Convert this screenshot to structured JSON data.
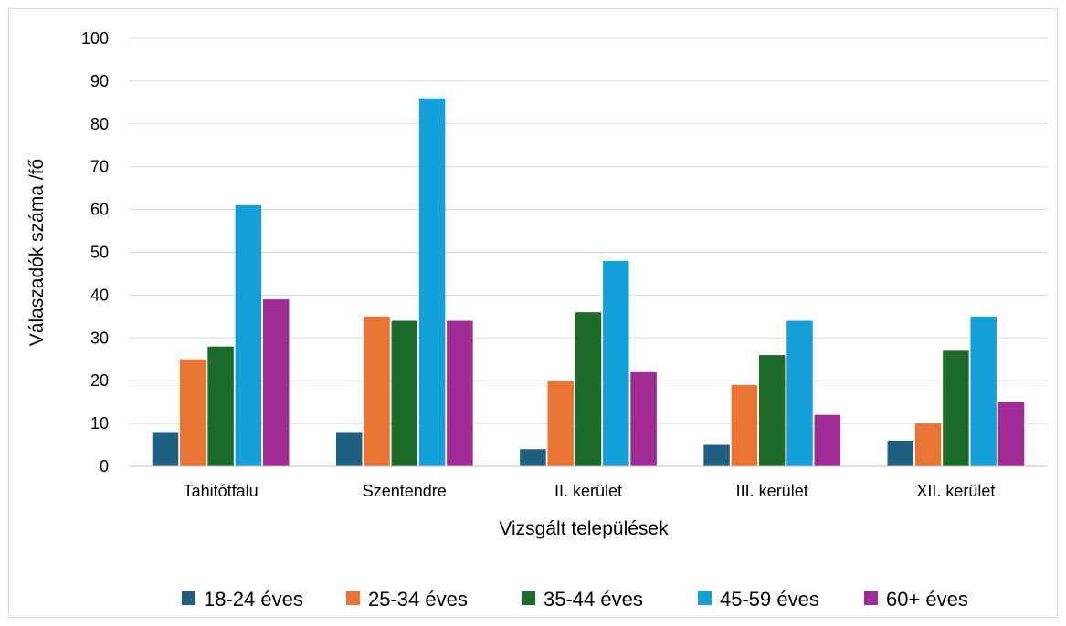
{
  "chart_data": {
    "type": "bar",
    "title": "",
    "xlabel": "Vizsgált települések",
    "ylabel": "Válaszadók száma /fő",
    "ylim": [
      0,
      100
    ],
    "yticks": [
      0,
      10,
      20,
      30,
      40,
      50,
      60,
      70,
      80,
      90,
      100
    ],
    "grid": true,
    "legend_position": "bottom",
    "categories": [
      "Tahitótfalu",
      "Szentendre",
      "II. kerület",
      "III. kerület",
      "XII. kerület"
    ],
    "series": [
      {
        "name": "18-24 éves",
        "color": "#1f5f7f",
        "values": [
          8,
          8,
          4,
          5,
          6
        ]
      },
      {
        "name": "25-34 éves",
        "color": "#ea7434",
        "values": [
          25,
          35,
          20,
          19,
          10
        ]
      },
      {
        "name": "35-44 éves",
        "color": "#1c6b2a",
        "values": [
          28,
          34,
          36,
          26,
          27
        ]
      },
      {
        "name": "45-59 éves",
        "color": "#14a0d8",
        "values": [
          61,
          86,
          48,
          34,
          35
        ]
      },
      {
        "name": "60+ éves",
        "color": "#a02b93",
        "values": [
          39,
          34,
          22,
          12,
          15
        ]
      }
    ]
  }
}
